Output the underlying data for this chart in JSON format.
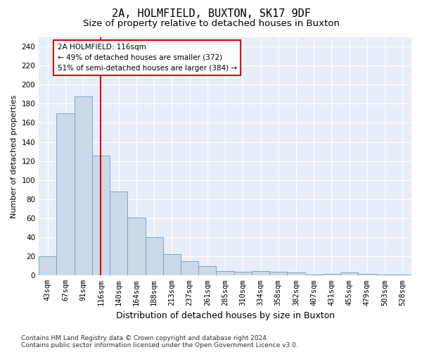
{
  "title": "2A, HOLMFIELD, BUXTON, SK17 9DF",
  "subtitle": "Size of property relative to detached houses in Buxton",
  "xlabel": "Distribution of detached houses by size in Buxton",
  "ylabel": "Number of detached properties",
  "categories": [
    "43sqm",
    "67sqm",
    "91sqm",
    "116sqm",
    "140sqm",
    "164sqm",
    "188sqm",
    "213sqm",
    "237sqm",
    "261sqm",
    "285sqm",
    "310sqm",
    "334sqm",
    "358sqm",
    "382sqm",
    "407sqm",
    "431sqm",
    "455sqm",
    "479sqm",
    "503sqm",
    "528sqm"
  ],
  "values": [
    20,
    170,
    188,
    126,
    88,
    61,
    40,
    22,
    15,
    10,
    5,
    4,
    5,
    4,
    3,
    1,
    2,
    3,
    2,
    1,
    1
  ],
  "bar_color": "#ccd9e8",
  "bar_edge_color": "#6b9dc2",
  "vline_idx": 3,
  "vline_color": "#dd0000",
  "annotation_text": "2A HOLMFIELD: 116sqm\n← 49% of detached houses are smaller (372)\n51% of semi-detached houses are larger (384) →",
  "annotation_box_facecolor": "white",
  "annotation_box_edgecolor": "#dd0000",
  "ylim": [
    0,
    250
  ],
  "yticks": [
    0,
    20,
    40,
    60,
    80,
    100,
    120,
    140,
    160,
    180,
    200,
    220,
    240
  ],
  "bg_color": "#e8eef8",
  "title_fontsize": 11,
  "subtitle_fontsize": 9.5,
  "xlabel_fontsize": 9,
  "ylabel_fontsize": 8,
  "tick_fontsize": 7.5,
  "annot_fontsize": 7.5,
  "footnote_fontsize": 6.5,
  "footnote": "Contains HM Land Registry data © Crown copyright and database right 2024.\nContains public sector information licensed under the Open Government Licence v3.0."
}
